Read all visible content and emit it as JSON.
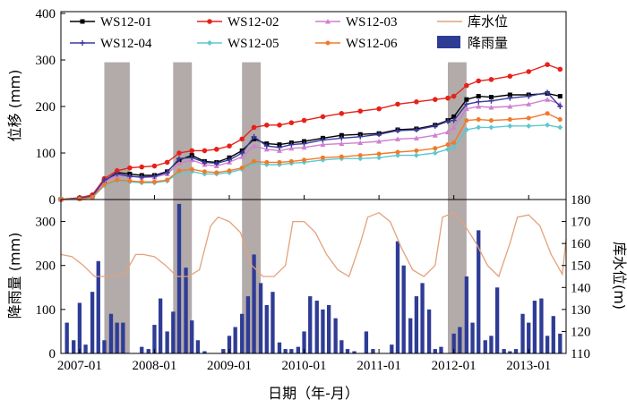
{
  "chart_data": [
    {
      "type": "line",
      "panel": "top",
      "ylabel": "位移 (mm)",
      "ylim": [
        0,
        400
      ],
      "y_ticks": [
        "0",
        "100",
        "200",
        "300",
        "400"
      ],
      "grid": false,
      "legend_placement": "top",
      "legend": [
        {
          "name": "WS12-01",
          "color": "#000000",
          "marker": "square"
        },
        {
          "name": "WS12-02",
          "color": "#e8201a",
          "marker": "circle"
        },
        {
          "name": "WS12-03",
          "color": "#d07fd0",
          "marker": "triangle"
        },
        {
          "name": "库水位",
          "color": "#e3a27c",
          "marker": "none"
        },
        {
          "name": "WS12-04",
          "color": "#3a3a9e",
          "marker": "star"
        },
        {
          "name": "WS12-05",
          "color": "#5cc8d0",
          "marker": "diamond"
        },
        {
          "name": "WS12-06",
          "color": "#f07a2a",
          "marker": "circle"
        },
        {
          "name": "降雨量",
          "color": "#2f3c96",
          "marker": "bar"
        }
      ],
      "shaded_periods": [
        [
          2007.33,
          2007.67
        ],
        [
          2008.25,
          2008.5
        ],
        [
          2009.17,
          2009.42
        ],
        [
          2011.92,
          2012.17
        ]
      ],
      "series": [
        {
          "name": "WS12-01",
          "color": "#000000",
          "x": [
            2006.75,
            2007.0,
            2007.17,
            2007.33,
            2007.5,
            2007.67,
            2007.83,
            2008.0,
            2008.17,
            2008.33,
            2008.5,
            2008.67,
            2008.83,
            2009.0,
            2009.17,
            2009.33,
            2009.5,
            2009.67,
            2009.83,
            2010.0,
            2010.25,
            2010.5,
            2010.75,
            2011.0,
            2011.25,
            2011.5,
            2011.75,
            2011.92,
            2012.0,
            2012.17,
            2012.33,
            2012.5,
            2012.75,
            2013.0,
            2013.25,
            2013.42
          ],
          "y": [
            0,
            3,
            8,
            40,
            58,
            55,
            52,
            52,
            60,
            85,
            95,
            82,
            80,
            90,
            105,
            130,
            120,
            118,
            122,
            125,
            132,
            138,
            140,
            142,
            150,
            152,
            160,
            170,
            178,
            215,
            222,
            220,
            225,
            225,
            228,
            222
          ]
        },
        {
          "name": "WS12-02",
          "color": "#e8201a",
          "x": [
            2006.75,
            2007.0,
            2007.17,
            2007.33,
            2007.5,
            2007.67,
            2007.83,
            2008.0,
            2008.17,
            2008.33,
            2008.5,
            2008.67,
            2008.83,
            2009.0,
            2009.17,
            2009.33,
            2009.5,
            2009.67,
            2009.83,
            2010.0,
            2010.25,
            2010.5,
            2010.75,
            2011.0,
            2011.25,
            2011.5,
            2011.75,
            2011.92,
            2012.0,
            2012.17,
            2012.33,
            2012.5,
            2012.75,
            2013.0,
            2013.25,
            2013.42
          ],
          "y": [
            0,
            4,
            10,
            45,
            62,
            68,
            70,
            72,
            80,
            100,
            105,
            105,
            108,
            115,
            130,
            155,
            160,
            160,
            165,
            170,
            178,
            185,
            190,
            195,
            205,
            210,
            215,
            218,
            222,
            245,
            255,
            258,
            265,
            275,
            290,
            280
          ]
        },
        {
          "name": "WS12-03",
          "color": "#d07fd0",
          "x": [
            2006.75,
            2007.0,
            2007.17,
            2007.33,
            2007.5,
            2007.67,
            2007.83,
            2008.0,
            2008.17,
            2008.33,
            2008.5,
            2008.67,
            2008.83,
            2009.0,
            2009.17,
            2009.33,
            2009.5,
            2009.67,
            2009.83,
            2010.0,
            2010.25,
            2010.5,
            2010.75,
            2011.0,
            2011.25,
            2011.5,
            2011.75,
            2011.92,
            2012.0,
            2012.17,
            2012.33,
            2012.5,
            2012.75,
            2013.0,
            2013.25,
            2013.42
          ],
          "y": [
            0,
            2,
            6,
            38,
            52,
            50,
            48,
            48,
            55,
            78,
            85,
            75,
            72,
            80,
            92,
            115,
            108,
            105,
            110,
            112,
            118,
            120,
            122,
            125,
            130,
            132,
            138,
            145,
            155,
            195,
            200,
            198,
            200,
            205,
            215,
            205
          ]
        },
        {
          "name": "WS12-04",
          "color": "#3a3a9e",
          "x": [
            2006.75,
            2007.0,
            2007.17,
            2007.33,
            2007.5,
            2007.67,
            2007.83,
            2008.0,
            2008.17,
            2008.33,
            2008.5,
            2008.67,
            2008.83,
            2009.0,
            2009.17,
            2009.33,
            2009.5,
            2009.67,
            2009.83,
            2010.0,
            2010.25,
            2010.5,
            2010.75,
            2011.0,
            2011.25,
            2011.5,
            2011.75,
            2011.92,
            2012.0,
            2012.17,
            2012.33,
            2012.5,
            2012.75,
            2013.0,
            2013.25,
            2013.42
          ],
          "y": [
            0,
            3,
            7,
            42,
            55,
            50,
            48,
            50,
            58,
            88,
            90,
            80,
            78,
            85,
            100,
            135,
            115,
            112,
            118,
            120,
            128,
            132,
            135,
            140,
            148,
            150,
            158,
            168,
            170,
            205,
            210,
            212,
            218,
            222,
            230,
            200
          ]
        },
        {
          "name": "WS12-05",
          "color": "#5cc8d0",
          "x": [
            2006.75,
            2007.0,
            2007.17,
            2007.33,
            2007.5,
            2007.67,
            2007.83,
            2008.0,
            2008.17,
            2008.33,
            2008.5,
            2008.67,
            2008.83,
            2009.0,
            2009.17,
            2009.33,
            2009.5,
            2009.67,
            2009.83,
            2010.0,
            2010.25,
            2010.5,
            2010.75,
            2011.0,
            2011.25,
            2011.5,
            2011.75,
            2011.92,
            2012.0,
            2012.17,
            2012.33,
            2012.5,
            2012.75,
            2013.0,
            2013.25,
            2013.42
          ],
          "y": [
            0,
            1,
            4,
            30,
            40,
            38,
            36,
            36,
            40,
            58,
            60,
            55,
            55,
            58,
            65,
            78,
            75,
            75,
            78,
            80,
            85,
            88,
            88,
            90,
            95,
            95,
            100,
            108,
            112,
            150,
            155,
            155,
            158,
            158,
            160,
            155
          ]
        },
        {
          "name": "WS12-06",
          "color": "#f07a2a",
          "x": [
            2006.75,
            2007.0,
            2007.17,
            2007.33,
            2007.5,
            2007.67,
            2007.83,
            2008.0,
            2008.17,
            2008.33,
            2008.5,
            2008.67,
            2008.83,
            2009.0,
            2009.17,
            2009.33,
            2009.5,
            2009.67,
            2009.83,
            2010.0,
            2010.25,
            2010.5,
            2010.75,
            2011.0,
            2011.25,
            2011.5,
            2011.75,
            2011.92,
            2012.0,
            2012.17,
            2012.33,
            2012.5,
            2012.75,
            2013.0,
            2013.25,
            2013.42
          ],
          "y": [
            0,
            1,
            5,
            32,
            42,
            40,
            38,
            38,
            42,
            62,
            65,
            60,
            58,
            62,
            68,
            82,
            80,
            80,
            82,
            85,
            90,
            92,
            95,
            98,
            102,
            105,
            110,
            118,
            122,
            170,
            172,
            170,
            172,
            175,
            185,
            172
          ]
        }
      ]
    },
    {
      "type": "bar+line",
      "panel": "bottom",
      "xlabel": "日期（年-月）",
      "x_ticks": [
        "2007-01",
        "2008-01",
        "2009-01",
        "2010-01",
        "2011-01",
        "2012-01",
        "2013-01"
      ],
      "x_tick_values": [
        2007.0,
        2008.0,
        2009.0,
        2010.0,
        2011.0,
        2012.0,
        2013.0
      ],
      "xlim": [
        2006.75,
        2013.5
      ],
      "ylabel_left": "降雨量 (mm)",
      "ylim_left": [
        0,
        350
      ],
      "y_ticks_left": [
        "0",
        "100",
        "200",
        "300"
      ],
      "ylabel_right": "库水位(m)",
      "ylim_right": [
        110,
        180
      ],
      "y_ticks_right": [
        "110",
        "120",
        "130",
        "140",
        "150",
        "160",
        "170",
        "180"
      ],
      "rainfall": {
        "name": "降雨量",
        "color": "#2f3c96",
        "x": [
          2006.83,
          2006.92,
          2007.0,
          2007.08,
          2007.17,
          2007.25,
          2007.33,
          2007.42,
          2007.5,
          2007.58,
          2007.67,
          2007.75,
          2007.83,
          2007.92,
          2008.0,
          2008.08,
          2008.17,
          2008.25,
          2008.33,
          2008.42,
          2008.5,
          2008.58,
          2008.67,
          2008.75,
          2008.83,
          2008.92,
          2009.0,
          2009.08,
          2009.17,
          2009.25,
          2009.33,
          2009.42,
          2009.5,
          2009.58,
          2009.67,
          2009.75,
          2009.83,
          2009.92,
          2010.0,
          2010.08,
          2010.17,
          2010.25,
          2010.33,
          2010.42,
          2010.5,
          2010.58,
          2010.67,
          2010.75,
          2010.83,
          2010.92,
          2011.0,
          2011.08,
          2011.17,
          2011.25,
          2011.33,
          2011.42,
          2011.5,
          2011.58,
          2011.67,
          2011.75,
          2011.83,
          2011.92,
          2012.0,
          2012.08,
          2012.17,
          2012.25,
          2012.33,
          2012.42,
          2012.5,
          2012.58,
          2012.67,
          2012.75,
          2012.83,
          2012.92,
          2013.0,
          2013.08,
          2013.17,
          2013.25,
          2013.33,
          2013.42
        ],
        "values": [
          70,
          30,
          115,
          20,
          140,
          210,
          30,
          90,
          70,
          70,
          0,
          0,
          15,
          10,
          65,
          125,
          50,
          95,
          340,
          195,
          75,
          30,
          5,
          0,
          0,
          10,
          40,
          60,
          90,
          130,
          225,
          160,
          110,
          140,
          25,
          10,
          10,
          15,
          50,
          130,
          120,
          100,
          110,
          80,
          30,
          10,
          5,
          0,
          50,
          10,
          0,
          0,
          20,
          255,
          200,
          80,
          130,
          160,
          100,
          10,
          15,
          0,
          45,
          60,
          175,
          70,
          280,
          30,
          40,
          150,
          10,
          5,
          10,
          90,
          70,
          120,
          125,
          40,
          85,
          45
        ]
      },
      "water_level": {
        "name": "库水位",
        "color": "#e3a27c",
        "x": [
          2006.75,
          2006.9,
          2007.05,
          2007.2,
          2007.4,
          2007.6,
          2007.75,
          2007.85,
          2008.0,
          2008.15,
          2008.3,
          2008.45,
          2008.6,
          2008.75,
          2008.85,
          2009.0,
          2009.15,
          2009.3,
          2009.45,
          2009.6,
          2009.75,
          2009.85,
          2010.0,
          2010.15,
          2010.3,
          2010.45,
          2010.6,
          2010.75,
          2010.85,
          2011.0,
          2011.15,
          2011.3,
          2011.45,
          2011.6,
          2011.75,
          2011.85,
          2012.0,
          2012.15,
          2012.3,
          2012.45,
          2012.6,
          2012.75,
          2012.85,
          2013.0,
          2013.15,
          2013.3,
          2013.45,
          2013.5
        ],
        "values": [
          155,
          154,
          150,
          145,
          145,
          146,
          155,
          155,
          154,
          150,
          145,
          145,
          148,
          168,
          172,
          170,
          165,
          150,
          145,
          145,
          150,
          170,
          170,
          165,
          155,
          148,
          145,
          160,
          172,
          174,
          170,
          158,
          148,
          145,
          150,
          172,
          174,
          168,
          160,
          150,
          145,
          160,
          172,
          173,
          168,
          155,
          146,
          162
        ]
      }
    }
  ]
}
